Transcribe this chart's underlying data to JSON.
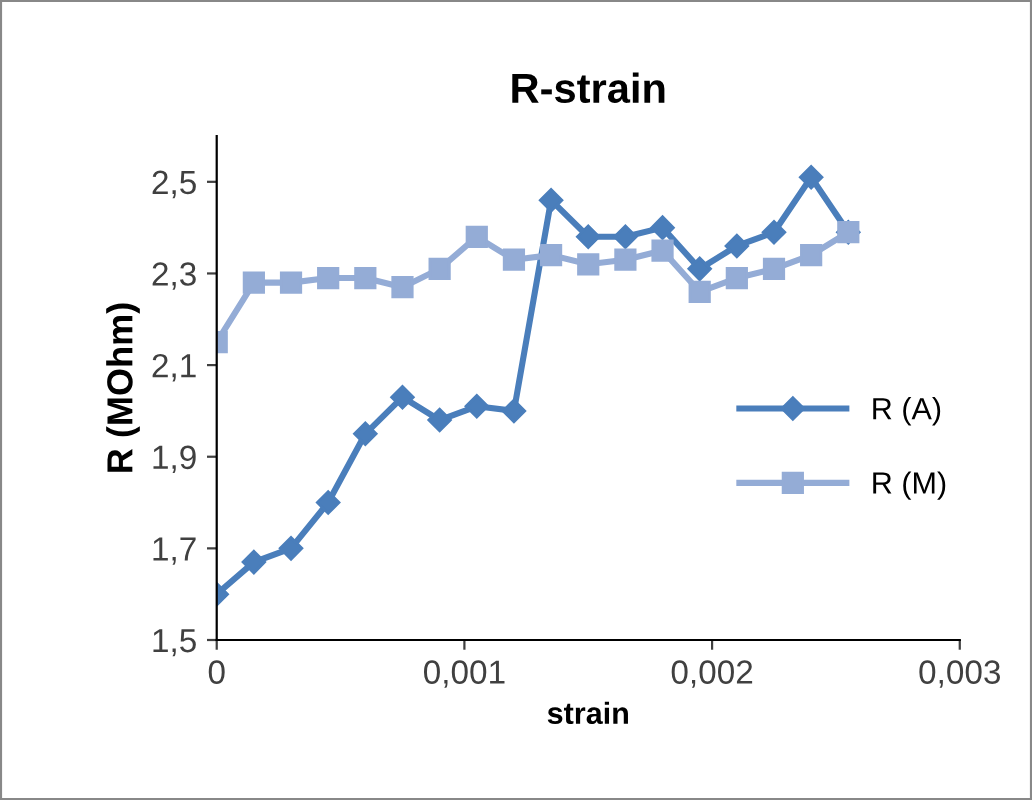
{
  "chart_data": {
    "type": "line",
    "title": "R-strain",
    "xlabel": "strain",
    "ylabel": "R (MOhm)",
    "x": [
      0,
      0.00015,
      0.0003,
      0.00045,
      0.0006,
      0.00075,
      0.0009,
      0.00105,
      0.0012,
      0.00135,
      0.0015,
      0.00165,
      0.0018,
      0.00195,
      0.0021,
      0.00225,
      0.0024,
      0.00255
    ],
    "series": [
      {
        "name": "R (A)",
        "color": "#4a7ebb",
        "marker": "diamond",
        "values": [
          1.6,
          1.67,
          1.7,
          1.8,
          1.95,
          2.03,
          1.98,
          2.01,
          2.0,
          2.46,
          2.38,
          2.38,
          2.4,
          2.31,
          2.36,
          2.39,
          2.51,
          2.39
        ]
      },
      {
        "name": "R (M)",
        "color": "#94acd6",
        "marker": "square",
        "values": [
          2.15,
          2.28,
          2.28,
          2.29,
          2.29,
          2.27,
          2.31,
          2.38,
          2.33,
          2.34,
          2.32,
          2.33,
          2.35,
          2.26,
          2.29,
          2.31,
          2.34,
          2.39
        ]
      }
    ],
    "xlim": [
      0,
      0.003
    ],
    "xticks": [
      0,
      {
        "value": 0.001,
        "label": "0,001"
      },
      {
        "value": 0.002,
        "label": "0,002"
      },
      {
        "value": 0.003,
        "label": "0,003"
      }
    ],
    "ylim": [
      1.5,
      2.6
    ],
    "yticks": [
      {
        "value": 1.5,
        "label": "1,5"
      },
      {
        "value": 1.7,
        "label": "1,7"
      },
      {
        "value": 1.9,
        "label": "1,9"
      },
      {
        "value": 2.1,
        "label": "2,1"
      },
      {
        "value": 2.3,
        "label": "2,3"
      },
      {
        "value": 2.5,
        "label": "2,5"
      }
    ],
    "grid": false,
    "legend": "right",
    "line_style": "solid"
  }
}
